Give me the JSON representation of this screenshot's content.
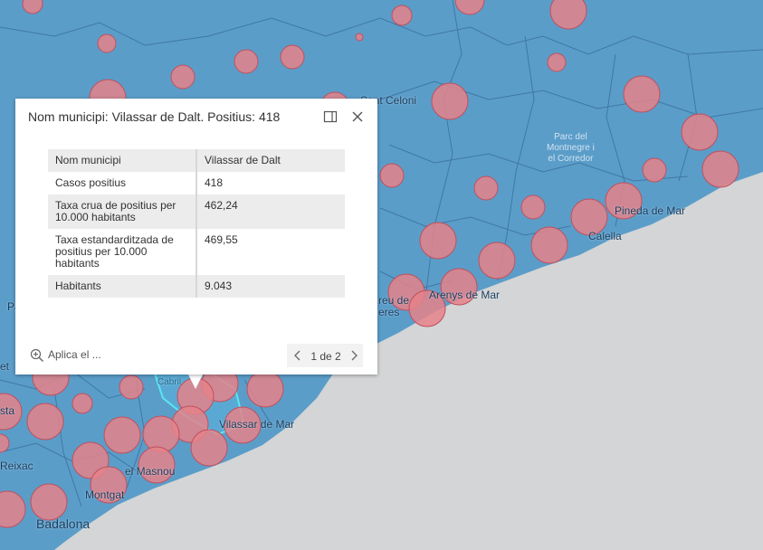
{
  "map": {
    "land_color": "#5b9dc9",
    "sea_color": "#d3d5d6",
    "boundary_color": "#3f78a6",
    "circle_color": "#e58289",
    "circle_stroke": "#c0505d",
    "selected_color": "#59e6f0",
    "places": {
      "sant_celoni": "Sant Celoni",
      "park": "Parc del\nMontnegre i\nel Corredor",
      "pineda": "Pineda de Mar",
      "calella": "Calella",
      "arenys": "Arenys de Mar",
      "canet_partial": "reu de",
      "res_partial": "eres",
      "vilassar_mar": "Vilassar de Mar",
      "masnou": "el Masnou",
      "montgat": "Montgat",
      "badalona": "Badalona",
      "reixac": "Reixac",
      "sta": "sta",
      "det": "et",
      "pa": "Pa",
      "cabrils": "Cabril"
    }
  },
  "popup": {
    "title": "Nom municipi: Vilassar de Dalt. Positius: 418",
    "dock_icon": "dock-icon",
    "close_icon": "close-icon",
    "rows": [
      {
        "key": "Nom municipi",
        "value": "Vilassar de Dalt"
      },
      {
        "key": "Casos positius",
        "value": "418"
      },
      {
        "key": "Taxa crua de positius per 10.000 habitants",
        "value": "462,24"
      },
      {
        "key": "Taxa estandarditzada de positius per 10.000 habitants",
        "value": "469,55"
      },
      {
        "key": "Habitants",
        "value": "9.043"
      }
    ],
    "zoom_label": "Aplica el ...",
    "pager": "1 de 2"
  }
}
